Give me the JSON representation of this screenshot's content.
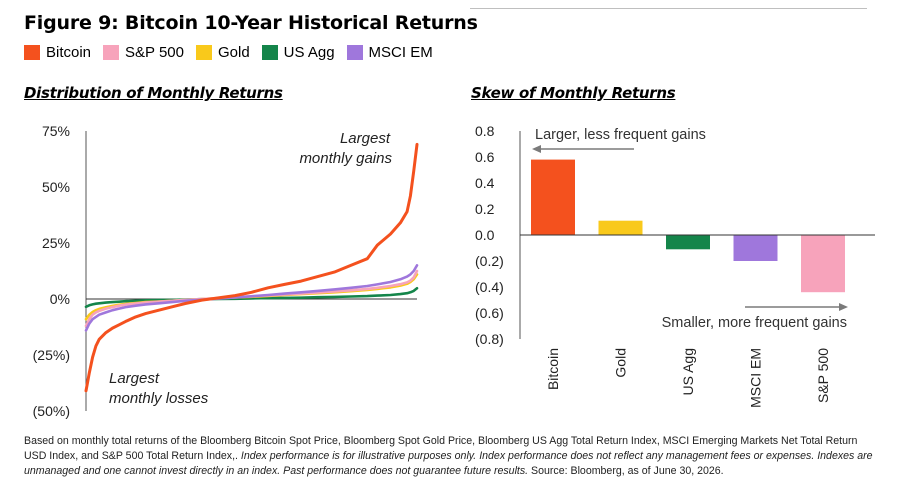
{
  "figure_title": "Figure 9: Bitcoin 10-Year Historical Returns",
  "legend": [
    {
      "name": "Bitcoin",
      "color": "#f4511e"
    },
    {
      "name": "S&P 500",
      "color": "#f7a3bb"
    },
    {
      "name": "Gold",
      "color": "#f9c91b"
    },
    {
      "name": "US Agg",
      "color": "#14854a"
    },
    {
      "name": "MSCI EM",
      "color": "#9f77dc"
    }
  ],
  "footnote": {
    "part1": "Based on monthly total returns of the Bloomberg Bitcoin Spot Price, Bloomberg Spot Gold Price, Bloomberg US Agg Total Return Index, MSCI Emerging Markets Net Total Return USD Index, and S&P 500 Total Return Index,.",
    "part2": " Index performance is for illustrative purposes only. Index performance does not reflect any management fees or expenses. Indexes are unmanaged and one cannot invest directly in an index. Past performance does not guarantee future results.",
    "part3": " Source: Bloomberg, as of June 30, 2026."
  },
  "chart_data": [
    {
      "type": "line",
      "title": "Distribution of Monthly Returns",
      "yticks": [
        "75%",
        "50%",
        "25%",
        "0%",
        "(25%)",
        "(50%)"
      ],
      "ylim": [
        -50,
        75
      ],
      "annotations": [
        {
          "text": [
            "Largest",
            "monthly gains"
          ]
        },
        {
          "text": [
            "Largest",
            "monthly losses"
          ]
        }
      ],
      "x_rank": [
        0,
        1,
        2,
        3,
        4,
        6,
        8,
        10,
        12,
        15,
        18,
        22,
        26,
        30,
        35,
        40,
        45,
        50,
        55,
        60,
        65,
        70,
        75,
        80,
        85,
        88,
        92,
        95,
        97,
        98,
        99,
        100
      ],
      "series": [
        {
          "name": "Bitcoin",
          "color": "#f4511e",
          "values": [
            -41,
            -33,
            -26,
            -21,
            -18,
            -15,
            -13,
            -11.5,
            -10,
            -8,
            -6.5,
            -5,
            -3.5,
            -2,
            -0.5,
            0.5,
            1.5,
            3,
            5,
            6.5,
            8,
            10,
            12,
            15,
            18,
            24,
            29,
            34,
            39,
            46,
            57,
            69
          ]
        },
        {
          "name": "S&P 500",
          "color": "#f7a3bb",
          "values": [
            -12,
            -9,
            -7,
            -6,
            -5.3,
            -4.3,
            -3.6,
            -3,
            -2.5,
            -2,
            -1.6,
            -1.2,
            -0.8,
            -0.4,
            0,
            0.4,
            0.8,
            1.2,
            1.6,
            2,
            2.4,
            2.9,
            3.4,
            3.9,
            4.5,
            5,
            5.8,
            6.6,
            7.4,
            8.2,
            9.6,
            12.5
          ]
        },
        {
          "name": "Gold",
          "color": "#f9c91b",
          "values": [
            -9,
            -7,
            -5.8,
            -5,
            -4.4,
            -3.7,
            -3.1,
            -2.6,
            -2.2,
            -1.8,
            -1.4,
            -1.1,
            -0.8,
            -0.4,
            0,
            0.3,
            0.7,
            1,
            1.4,
            1.8,
            2.2,
            2.6,
            3,
            3.5,
            4,
            4.5,
            5.2,
            6,
            6.8,
            7.6,
            8.8,
            11
          ]
        },
        {
          "name": "US Agg",
          "color": "#14854a",
          "values": [
            -3.5,
            -2.8,
            -2.4,
            -2.1,
            -1.9,
            -1.6,
            -1.4,
            -1.2,
            -1,
            -0.8,
            -0.6,
            -0.5,
            -0.4,
            -0.25,
            -0.1,
            0,
            0.1,
            0.25,
            0.4,
            0.5,
            0.6,
            0.8,
            0.95,
            1.1,
            1.3,
            1.5,
            1.8,
            2.2,
            2.6,
            3,
            3.6,
            4.8
          ]
        },
        {
          "name": "MSCI EM",
          "color": "#9f77dc",
          "values": [
            -14,
            -11,
            -9,
            -8,
            -7,
            -6,
            -5,
            -4.3,
            -3.6,
            -3,
            -2.4,
            -1.9,
            -1.4,
            -0.8,
            -0.3,
            0.2,
            0.7,
            1.2,
            1.8,
            2.4,
            3,
            3.6,
            4.3,
            5,
            5.8,
            6.5,
            7.6,
            8.8,
            10,
            11,
            12.5,
            15
          ]
        }
      ]
    },
    {
      "type": "bar",
      "title": "Skew of Monthly Returns",
      "categories": [
        "Bitcoin",
        "Gold",
        "US Agg",
        "MSCI EM",
        "S&P 500"
      ],
      "values": [
        0.58,
        0.11,
        -0.11,
        -0.2,
        -0.44
      ],
      "colors": [
        "#f4511e",
        "#f9c91b",
        "#14854a",
        "#9f77dc",
        "#f7a3bb"
      ],
      "yticks": [
        "0.8",
        "0.6",
        "0.4",
        "0.2",
        "0.0",
        "(0.2)",
        "(0.4)",
        "(0.6)",
        "(0.8)"
      ],
      "ylim": [
        -0.8,
        0.8
      ],
      "annotations": [
        {
          "text": "Larger, less frequent gains"
        },
        {
          "text": "Smaller, more frequent gains"
        }
      ]
    }
  ]
}
